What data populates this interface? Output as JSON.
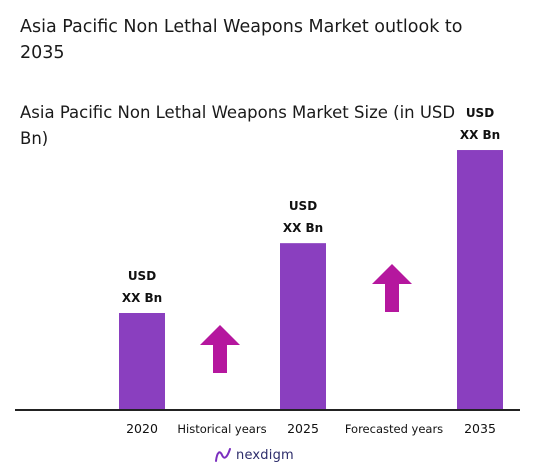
{
  "page": {
    "title": "Asia Pacific Non Lethal Weapons Market outlook to 2035",
    "brand": "nexdigm"
  },
  "colors": {
    "bar": "#8a3fbf",
    "arrow": "#b5179e",
    "axis": "#222222"
  },
  "chart_data": {
    "type": "bar",
    "title": "Asia Pacific Non Lethal Weapons Market Size (in USD Bn)",
    "categories": [
      "2020",
      "2025",
      "2035"
    ],
    "values": [
      100,
      172,
      268
    ],
    "value_labels": [
      [
        "USD",
        "XX Bn"
      ],
      [
        "USD",
        "XX Bn"
      ],
      [
        "USD",
        "XX Bn"
      ]
    ],
    "period_labels": [
      "Historical years",
      "Forecasted years"
    ],
    "annotations": [
      "up-arrow-icon",
      "up-arrow-icon"
    ],
    "xlabel": "",
    "ylabel": "",
    "grid": false,
    "legend": "none"
  }
}
